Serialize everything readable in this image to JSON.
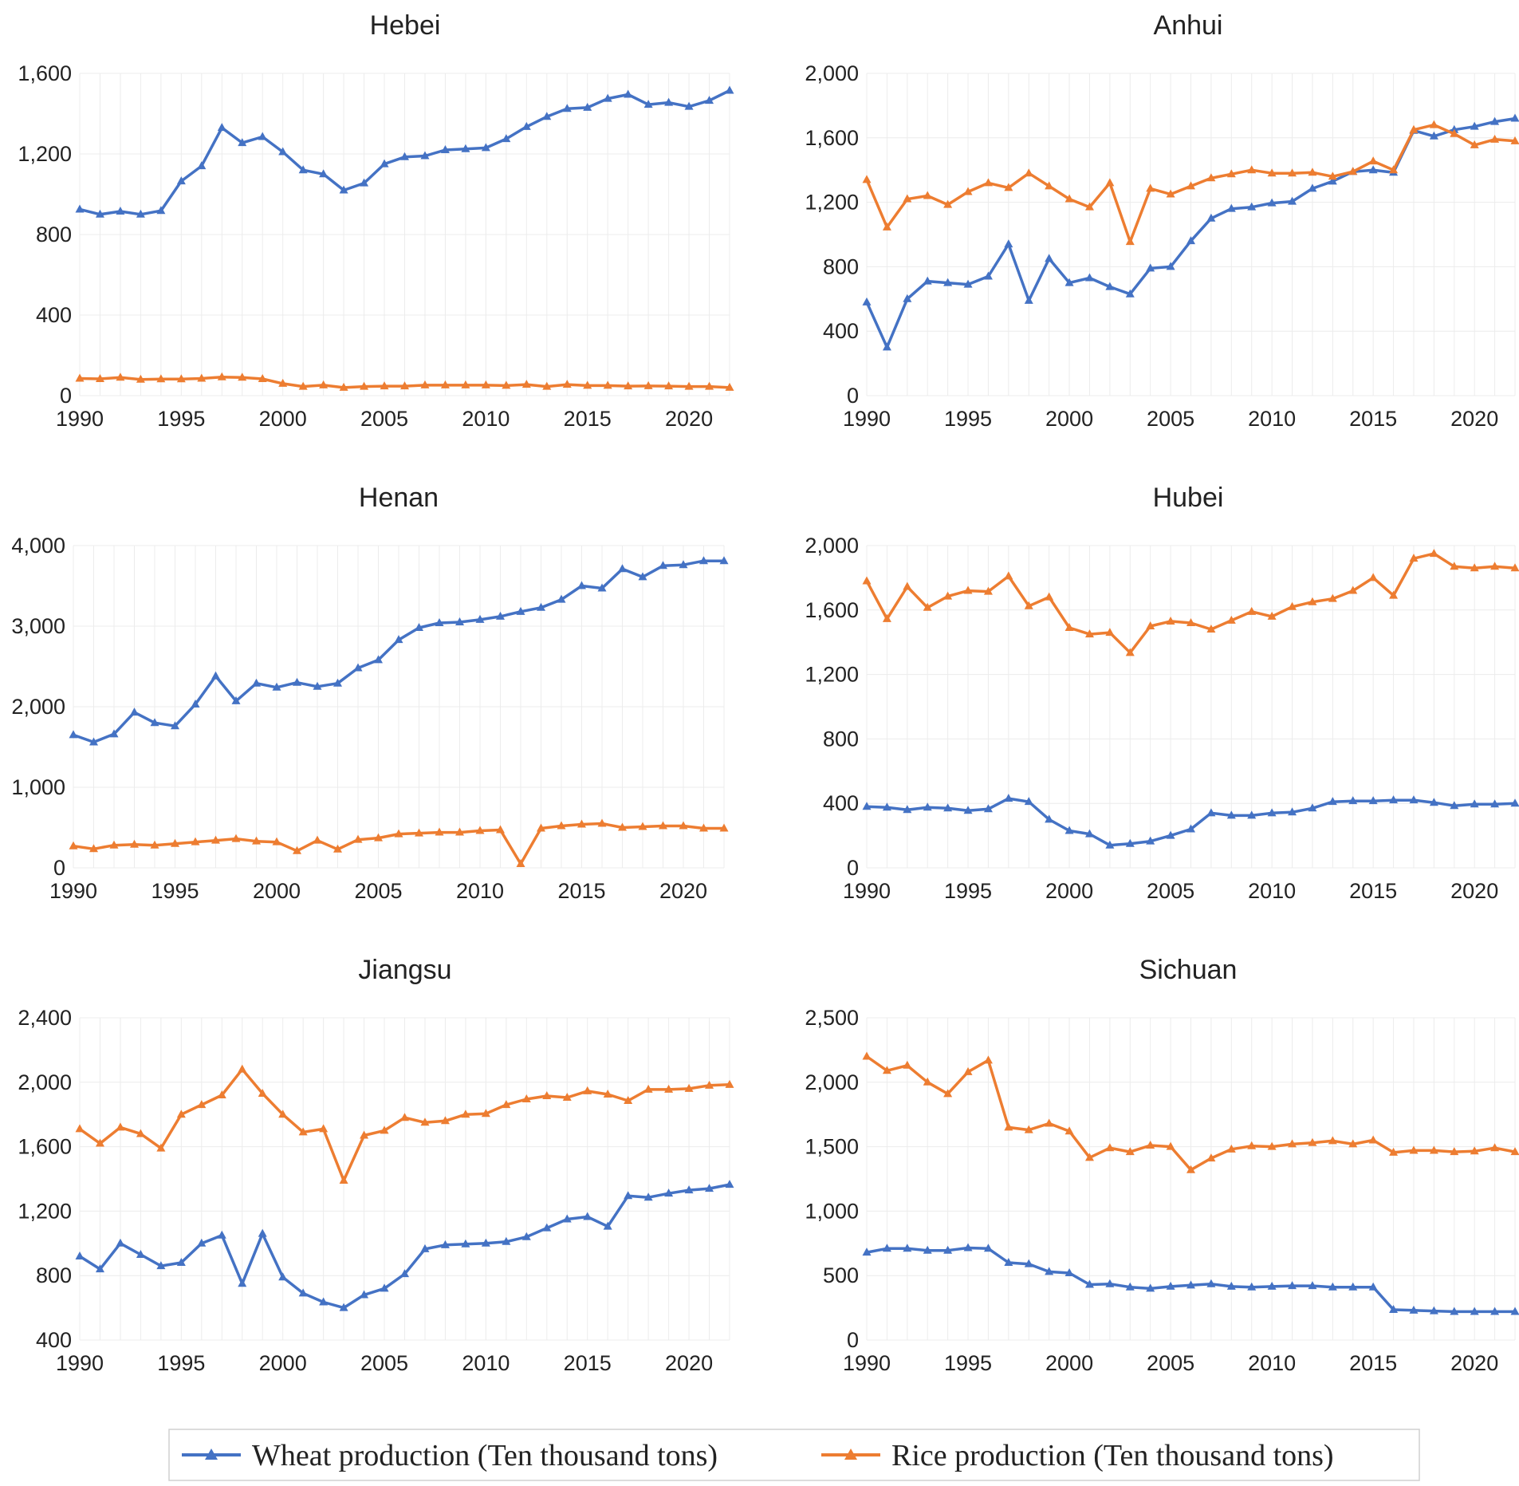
{
  "chart_data": [
    {
      "type": "line",
      "title": "Hebei",
      "x": [
        1990,
        1991,
        1992,
        1993,
        1994,
        1995,
        1996,
        1997,
        1998,
        1999,
        2000,
        2001,
        2002,
        2003,
        2004,
        2005,
        2006,
        2007,
        2008,
        2009,
        2010,
        2011,
        2012,
        2013,
        2014,
        2015,
        2016,
        2017,
        2018,
        2019,
        2020,
        2021,
        2022
      ],
      "xlim": [
        1990,
        2022
      ],
      "xticks": [
        "1990",
        "1995",
        "2000",
        "2005",
        "2010",
        "2015",
        "2020"
      ],
      "ylim": [
        0,
        1600
      ],
      "yticks": [
        "0",
        "400",
        "800",
        "1,200",
        "1,600"
      ],
      "series": [
        {
          "name": "Wheat production (Ten thousand tons)",
          "values": [
            925,
            900,
            915,
            900,
            918,
            1065,
            1140,
            1330,
            1255,
            1285,
            1210,
            1120,
            1100,
            1020,
            1055,
            1150,
            1185,
            1190,
            1220,
            1225,
            1230,
            1275,
            1335,
            1385,
            1425,
            1430,
            1475,
            1495,
            1445,
            1455,
            1435,
            1465,
            1515
          ]
        },
        {
          "name": "Rice production (Ten thousand tons)",
          "values": [
            85,
            83,
            90,
            80,
            82,
            82,
            85,
            92,
            90,
            83,
            60,
            45,
            52,
            40,
            45,
            47,
            47,
            52,
            52,
            52,
            52,
            50,
            55,
            45,
            55,
            50,
            50,
            47,
            48,
            47,
            45,
            45,
            40
          ]
        }
      ]
    },
    {
      "type": "line",
      "title": "Anhui",
      "x": [
        1990,
        1991,
        1992,
        1993,
        1994,
        1995,
        1996,
        1997,
        1998,
        1999,
        2000,
        2001,
        2002,
        2003,
        2004,
        2005,
        2006,
        2007,
        2008,
        2009,
        2010,
        2011,
        2012,
        2013,
        2014,
        2015,
        2016,
        2017,
        2018,
        2019,
        2020,
        2021,
        2022
      ],
      "xlim": [
        1990,
        2022
      ],
      "xticks": [
        "1990",
        "1995",
        "2000",
        "2005",
        "2010",
        "2015",
        "2020"
      ],
      "ylim": [
        0,
        2000
      ],
      "yticks": [
        "0",
        "400",
        "800",
        "1,200",
        "1,600",
        "2,000"
      ],
      "series": [
        {
          "name": "Wheat production (Ten thousand tons)",
          "values": [
            580,
            300,
            600,
            710,
            700,
            690,
            740,
            940,
            590,
            850,
            700,
            730,
            675,
            630,
            790,
            800,
            960,
            1100,
            1160,
            1170,
            1195,
            1205,
            1285,
            1330,
            1390,
            1400,
            1385,
            1645,
            1610,
            1650,
            1670,
            1700,
            1720
          ]
        },
        {
          "name": "Rice production (Ten thousand tons)",
          "values": [
            1340,
            1045,
            1220,
            1240,
            1185,
            1265,
            1320,
            1290,
            1380,
            1300,
            1220,
            1170,
            1320,
            955,
            1285,
            1250,
            1300,
            1350,
            1375,
            1400,
            1380,
            1380,
            1385,
            1360,
            1390,
            1455,
            1400,
            1650,
            1680,
            1625,
            1555,
            1590,
            1580
          ]
        }
      ]
    },
    {
      "type": "line",
      "title": "Henan",
      "x": [
        1990,
        1991,
        1992,
        1993,
        1994,
        1995,
        1996,
        1997,
        1998,
        1999,
        2000,
        2001,
        2002,
        2003,
        2004,
        2005,
        2006,
        2007,
        2008,
        2009,
        2010,
        2011,
        2012,
        2013,
        2014,
        2015,
        2016,
        2017,
        2018,
        2019,
        2020,
        2021,
        2022
      ],
      "xlim": [
        1990,
        2022
      ],
      "xticks": [
        "1990",
        "1995",
        "2000",
        "2005",
        "2010",
        "2015",
        "2020"
      ],
      "ylim": [
        0,
        4000
      ],
      "yticks": [
        "0",
        "1,000",
        "2,000",
        "3,000",
        "4,000"
      ],
      "series": [
        {
          "name": "Wheat production (Ten thousand tons)",
          "values": [
            1650,
            1560,
            1660,
            1930,
            1800,
            1760,
            2030,
            2380,
            2070,
            2290,
            2240,
            2300,
            2250,
            2290,
            2480,
            2580,
            2830,
            2980,
            3040,
            3050,
            3080,
            3120,
            3180,
            3230,
            3330,
            3500,
            3470,
            3710,
            3610,
            3750,
            3760,
            3810,
            3810
          ]
        },
        {
          "name": "Rice production (Ten thousand tons)",
          "values": [
            270,
            235,
            280,
            290,
            280,
            300,
            320,
            340,
            360,
            330,
            320,
            210,
            340,
            230,
            350,
            370,
            420,
            430,
            440,
            440,
            460,
            470,
            50,
            490,
            520,
            540,
            550,
            500,
            510,
            520,
            520,
            490,
            490
          ]
        }
      ]
    },
    {
      "type": "line",
      "title": "Hubei",
      "x": [
        1990,
        1991,
        1992,
        1993,
        1994,
        1995,
        1996,
        1997,
        1998,
        1999,
        2000,
        2001,
        2002,
        2003,
        2004,
        2005,
        2006,
        2007,
        2008,
        2009,
        2010,
        2011,
        2012,
        2013,
        2014,
        2015,
        2016,
        2017,
        2018,
        2019,
        2020,
        2021,
        2022
      ],
      "xlim": [
        1990,
        2022
      ],
      "xticks": [
        "1990",
        "1995",
        "2000",
        "2005",
        "2010",
        "2015",
        "2020"
      ],
      "ylim": [
        0,
        2000
      ],
      "yticks": [
        "0",
        "400",
        "800",
        "1,200",
        "1,600",
        "2,000"
      ],
      "series": [
        {
          "name": "Wheat production (Ten thousand tons)",
          "values": [
            380,
            375,
            360,
            375,
            370,
            355,
            365,
            430,
            410,
            300,
            230,
            210,
            140,
            150,
            165,
            200,
            240,
            340,
            325,
            325,
            340,
            345,
            370,
            410,
            415,
            415,
            420,
            420,
            405,
            385,
            395,
            395,
            400
          ]
        },
        {
          "name": "Rice production (Ten thousand tons)",
          "values": [
            1780,
            1545,
            1745,
            1615,
            1685,
            1720,
            1715,
            1810,
            1625,
            1680,
            1490,
            1450,
            1460,
            1335,
            1500,
            1530,
            1520,
            1480,
            1535,
            1590,
            1560,
            1620,
            1650,
            1670,
            1720,
            1800,
            1690,
            1920,
            1950,
            1870,
            1860,
            1870,
            1860
          ]
        }
      ]
    },
    {
      "type": "line",
      "title": "Jiangsu",
      "x": [
        1990,
        1991,
        1992,
        1993,
        1994,
        1995,
        1996,
        1997,
        1998,
        1999,
        2000,
        2001,
        2002,
        2003,
        2004,
        2005,
        2006,
        2007,
        2008,
        2009,
        2010,
        2011,
        2012,
        2013,
        2014,
        2015,
        2016,
        2017,
        2018,
        2019,
        2020,
        2021,
        2022
      ],
      "xlim": [
        1990,
        2022
      ],
      "xticks": [
        "1990",
        "1995",
        "2000",
        "2005",
        "2010",
        "2015",
        "2020"
      ],
      "ylim": [
        400,
        2400
      ],
      "yticks": [
        "400",
        "800",
        "1,200",
        "1,600",
        "2,000",
        "2,400"
      ],
      "series": [
        {
          "name": "Wheat production (Ten thousand tons)",
          "values": [
            920,
            840,
            1000,
            930,
            860,
            880,
            1000,
            1050,
            750,
            1060,
            790,
            690,
            635,
            600,
            680,
            720,
            810,
            965,
            990,
            995,
            1000,
            1010,
            1040,
            1095,
            1150,
            1165,
            1105,
            1295,
            1285,
            1310,
            1330,
            1340,
            1365
          ]
        },
        {
          "name": "Rice production (Ten thousand tons)",
          "values": [
            1710,
            1620,
            1720,
            1680,
            1590,
            1800,
            1860,
            1920,
            2080,
            1930,
            1800,
            1690,
            1710,
            1390,
            1670,
            1700,
            1780,
            1750,
            1760,
            1800,
            1805,
            1860,
            1895,
            1915,
            1905,
            1945,
            1925,
            1885,
            1955,
            1955,
            1960,
            1980,
            1985
          ]
        }
      ]
    },
    {
      "type": "line",
      "title": "Sichuan",
      "x": [
        1990,
        1991,
        1992,
        1993,
        1994,
        1995,
        1996,
        1997,
        1998,
        1999,
        2000,
        2001,
        2002,
        2003,
        2004,
        2005,
        2006,
        2007,
        2008,
        2009,
        2010,
        2011,
        2012,
        2013,
        2014,
        2015,
        2016,
        2017,
        2018,
        2019,
        2020,
        2021,
        2022
      ],
      "xlim": [
        1990,
        2022
      ],
      "xticks": [
        "1990",
        "1995",
        "2000",
        "2005",
        "2010",
        "2015",
        "2020"
      ],
      "ylim": [
        0,
        2500
      ],
      "yticks": [
        "0",
        "500",
        "1,000",
        "1,500",
        "2,000",
        "2,500"
      ],
      "series": [
        {
          "name": "Wheat production (Ten thousand tons)",
          "values": [
            680,
            710,
            710,
            695,
            695,
            715,
            710,
            600,
            590,
            530,
            520,
            430,
            435,
            410,
            400,
            415,
            425,
            435,
            415,
            410,
            415,
            420,
            420,
            410,
            410,
            410,
            235,
            230,
            225,
            220,
            220,
            220,
            220
          ]
        },
        {
          "name": "Rice production (Ten thousand tons)",
          "values": [
            2200,
            2090,
            2130,
            2000,
            1910,
            2080,
            2170,
            1650,
            1630,
            1680,
            1620,
            1415,
            1490,
            1460,
            1510,
            1500,
            1320,
            1410,
            1480,
            1505,
            1500,
            1520,
            1530,
            1545,
            1520,
            1550,
            1455,
            1470,
            1470,
            1460,
            1465,
            1490,
            1460
          ]
        }
      ]
    }
  ],
  "legend": {
    "items": [
      {
        "label": "Wheat production (Ten thousand tons)",
        "color": "#4472C4"
      },
      {
        "label": "Rice production (Ten thousand tons)",
        "color": "#ED7D31"
      }
    ]
  },
  "colors": {
    "wheat": "#4472C4",
    "rice": "#ED7D31"
  }
}
